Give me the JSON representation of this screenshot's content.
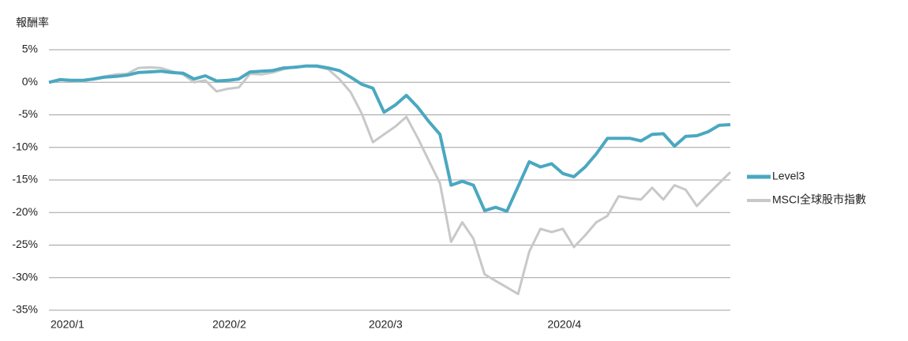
{
  "chart_data": {
    "type": "line",
    "y_axis_title": "報酬率",
    "categories": [
      "2020/1",
      null,
      null,
      null,
      null,
      null,
      null,
      null,
      null,
      null,
      null,
      null,
      null,
      null,
      null,
      null,
      "2020/2",
      null,
      null,
      null,
      null,
      null,
      null,
      null,
      null,
      null,
      null,
      null,
      null,
      null,
      "2020/3",
      null,
      null,
      null,
      null,
      null,
      null,
      null,
      null,
      null,
      null,
      null,
      null,
      null,
      null,
      null,
      "2020/4",
      null,
      null,
      null,
      null,
      null,
      null,
      null,
      null,
      null,
      null,
      null,
      null,
      null,
      null,
      null
    ],
    "series": [
      {
        "name": "Level3",
        "color": "#4aa8c0",
        "width": 4,
        "values": [
          0,
          0.4,
          0.3,
          0.3,
          0.5,
          0.8,
          0.9,
          1.1,
          1.5,
          1.6,
          1.7,
          1.5,
          1.4,
          0.5,
          1.0,
          0.2,
          0.3,
          0.5,
          1.6,
          1.7,
          1.8,
          2.2,
          2.3,
          2.5,
          2.5,
          2.2,
          1.8,
          0.8,
          -0.3,
          -0.9,
          -4.6,
          -3.5,
          -2.0,
          -3.8,
          -6.0,
          -8.0,
          -15.8,
          -15.2,
          -15.8,
          -19.7,
          -19.2,
          -19.8,
          -16.0,
          -12.2,
          -13.0,
          -12.5,
          -14.0,
          -14.5,
          -13.0,
          -11.0,
          -8.6,
          -8.6,
          -8.6,
          -9.0,
          -8.0,
          -7.9,
          -9.8,
          -8.3,
          -8.2,
          -7.6,
          -6.6,
          -6.5
        ]
      },
      {
        "name": "MSCI全球股市指數",
        "color": "#c8c8c8",
        "width": 3,
        "values": [
          0,
          0.5,
          0.2,
          0.1,
          0.6,
          0.9,
          1.2,
          1.3,
          2.2,
          2.3,
          2.2,
          1.7,
          1.2,
          0,
          0.3,
          -1.4,
          -1.0,
          -0.8,
          1.3,
          1.2,
          1.5,
          2.0,
          2.4,
          2.5,
          2.4,
          2.0,
          0.5,
          -1.5,
          -4.8,
          -9.2,
          -8.0,
          -6.8,
          -5.3,
          -8.5,
          -12.0,
          -15.5,
          -24.5,
          -21.5,
          -24.0,
          -29.5,
          -30.5,
          -31.5,
          -32.5,
          -26,
          -22.5,
          -23,
          -22.5,
          -25.3,
          -23.5,
          -21.5,
          -20.5,
          -17.5,
          -17.8,
          -18,
          -16.2,
          -18,
          -15.8,
          -16.5,
          -19,
          -17.2,
          -15.5,
          -13.8
        ]
      }
    ],
    "ylim": [
      -35,
      5
    ],
    "yticks": [
      {
        "value": -35,
        "label": "-35%"
      },
      {
        "value": -30,
        "label": "-30%"
      },
      {
        "value": -25,
        "label": "-25%"
      },
      {
        "value": -20,
        "label": "-20%"
      },
      {
        "value": -15,
        "label": "-15%"
      },
      {
        "value": -10,
        "label": "-10%"
      },
      {
        "value": -5,
        "label": "-5%"
      },
      {
        "value": 0,
        "label": "0%"
      },
      {
        "value": 5,
        "label": "5%"
      }
    ],
    "grid": true,
    "legend": "right"
  }
}
